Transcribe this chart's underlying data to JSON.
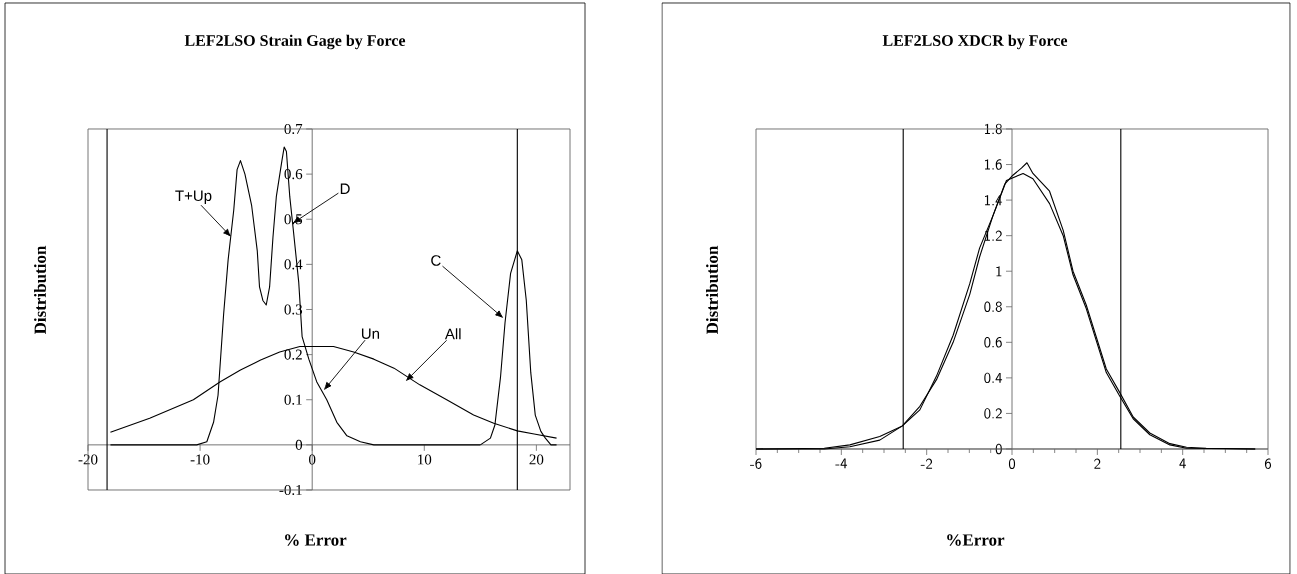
{
  "chart_data": [
    {
      "type": "line",
      "title": "LEF2LSO Strain Gage by Force",
      "xlabel": "% Error",
      "ylabel": "Distribution",
      "xlim": [
        -20,
        23
      ],
      "ylim": [
        -0.1,
        0.7
      ],
      "xticks": [
        -20,
        -10,
        0,
        10,
        20
      ],
      "yticks": [
        -0.1,
        0,
        0.1,
        0.2,
        0.3,
        0.4,
        0.5,
        0.6,
        0.7
      ],
      "ref_lines": [
        {
          "axis": "x",
          "value": -18.3,
          "color": "#000000"
        },
        {
          "axis": "x",
          "value": 18.3,
          "color": "#000000"
        }
      ],
      "annotations": [
        {
          "text": "T+Up",
          "x": -7.2,
          "y": 0.46
        },
        {
          "text": "D",
          "x": -1.8,
          "y": 0.49
        },
        {
          "text": "Un",
          "x": 1.0,
          "y": 0.12
        },
        {
          "text": "All",
          "x": 8.3,
          "y": 0.14
        },
        {
          "text": "C",
          "x": 17.1,
          "y": 0.28
        }
      ],
      "series": [
        {
          "color": "#000000",
          "x": [
            -18.0,
            -10.3,
            -9.4,
            -8.8,
            -8.4,
            -7.9,
            -7.5,
            -7.0,
            -6.7,
            -6.4,
            -6.0,
            -5.4,
            -4.9,
            -4.7,
            -4.4,
            -4.1,
            -3.8,
            -3.5,
            -3.2,
            -2.7,
            -2.5,
            -2.3,
            -2.0,
            -1.7,
            -1.2,
            -0.9,
            -0.3,
            0.4,
            1.3,
            2.2,
            3.1,
            4.3,
            5.5,
            15.0
          ],
          "values": [
            0,
            0,
            0.007,
            0.05,
            0.11,
            0.29,
            0.41,
            0.52,
            0.61,
            0.63,
            0.6,
            0.53,
            0.43,
            0.35,
            0.32,
            0.31,
            0.35,
            0.46,
            0.55,
            0.63,
            0.66,
            0.65,
            0.55,
            0.48,
            0.36,
            0.24,
            0.19,
            0.14,
            0.1,
            0.05,
            0.02,
            0.007,
            0,
            0
          ]
        },
        {
          "color": "#000000",
          "x": [
            15.0,
            15.9,
            16.3,
            16.8,
            17.2,
            17.7,
            18.3,
            18.7,
            19.1,
            19.5,
            19.9,
            20.4,
            20.8,
            21.3,
            21.8
          ],
          "values": [
            0,
            0.015,
            0.044,
            0.15,
            0.27,
            0.38,
            0.43,
            0.41,
            0.32,
            0.16,
            0.066,
            0.03,
            0.015,
            0,
            0
          ]
        },
        {
          "color": "#000000",
          "x": [
            -18.0,
            -14.5,
            -10.6,
            -8.2,
            -6.4,
            -4.6,
            -2.9,
            -1.1,
            1.9,
            3.7,
            5.5,
            7.3,
            9.6,
            12.0,
            14.4,
            16.2,
            18.3,
            19.8,
            21.8
          ],
          "values": [
            0.028,
            0.059,
            0.1,
            0.14,
            0.166,
            0.188,
            0.206,
            0.218,
            0.218,
            0.206,
            0.19,
            0.17,
            0.133,
            0.1,
            0.066,
            0.048,
            0.031,
            0.024,
            0.015
          ]
        }
      ]
    },
    {
      "type": "line",
      "title": "LEF2LSO XDCR by Force",
      "xlabel": "%Error",
      "ylabel": "Distribution",
      "xlim": [
        -6,
        6
      ],
      "ylim": [
        0,
        1.8
      ],
      "xticks": [
        -6,
        -4,
        -2,
        0,
        2,
        4,
        6
      ],
      "yticks": [
        0,
        0.2,
        0.4,
        0.6,
        0.8,
        1,
        1.2,
        1.4,
        1.6,
        1.8
      ],
      "ref_lines": [
        {
          "axis": "x",
          "value": -2.55,
          "color": "#000000"
        },
        {
          "axis": "x",
          "value": 2.55,
          "color": "#000000"
        }
      ],
      "series": [
        {
          "color": "#000000",
          "x": [
            -6.0,
            -4.4,
            -3.8,
            -3.1,
            -2.57,
            -2.16,
            -1.77,
            -1.38,
            -0.99,
            -0.76,
            -0.45,
            -0.17,
            0.02,
            0.22,
            0.35,
            0.49,
            0.88,
            1.2,
            1.43,
            1.74,
            2.21,
            2.52,
            2.84,
            3.23,
            3.7,
            4.09,
            4.55,
            5.7
          ],
          "values": [
            0,
            0,
            0.013,
            0.05,
            0.13,
            0.24,
            0.39,
            0.6,
            0.87,
            1.08,
            1.31,
            1.49,
            1.54,
            1.58,
            1.61,
            1.55,
            1.45,
            1.23,
            1.0,
            0.81,
            0.45,
            0.32,
            0.18,
            0.09,
            0.03,
            0.01,
            0.004,
            0
          ]
        },
        {
          "color": "#000000",
          "x": [
            -6.0,
            -4.4,
            -3.8,
            -3.1,
            -2.57,
            -2.16,
            -1.77,
            -1.38,
            -0.99,
            -0.76,
            -0.45,
            -0.13,
            0.26,
            0.49,
            0.88,
            1.2,
            1.43,
            1.74,
            2.21,
            2.52,
            2.84,
            3.23,
            3.7,
            4.09,
            5.7
          ],
          "values": [
            0,
            0.004,
            0.023,
            0.07,
            0.13,
            0.22,
            0.41,
            0.64,
            0.93,
            1.13,
            1.31,
            1.51,
            1.55,
            1.52,
            1.38,
            1.2,
            0.98,
            0.79,
            0.43,
            0.3,
            0.17,
            0.08,
            0.023,
            0.004,
            0
          ]
        }
      ]
    }
  ]
}
